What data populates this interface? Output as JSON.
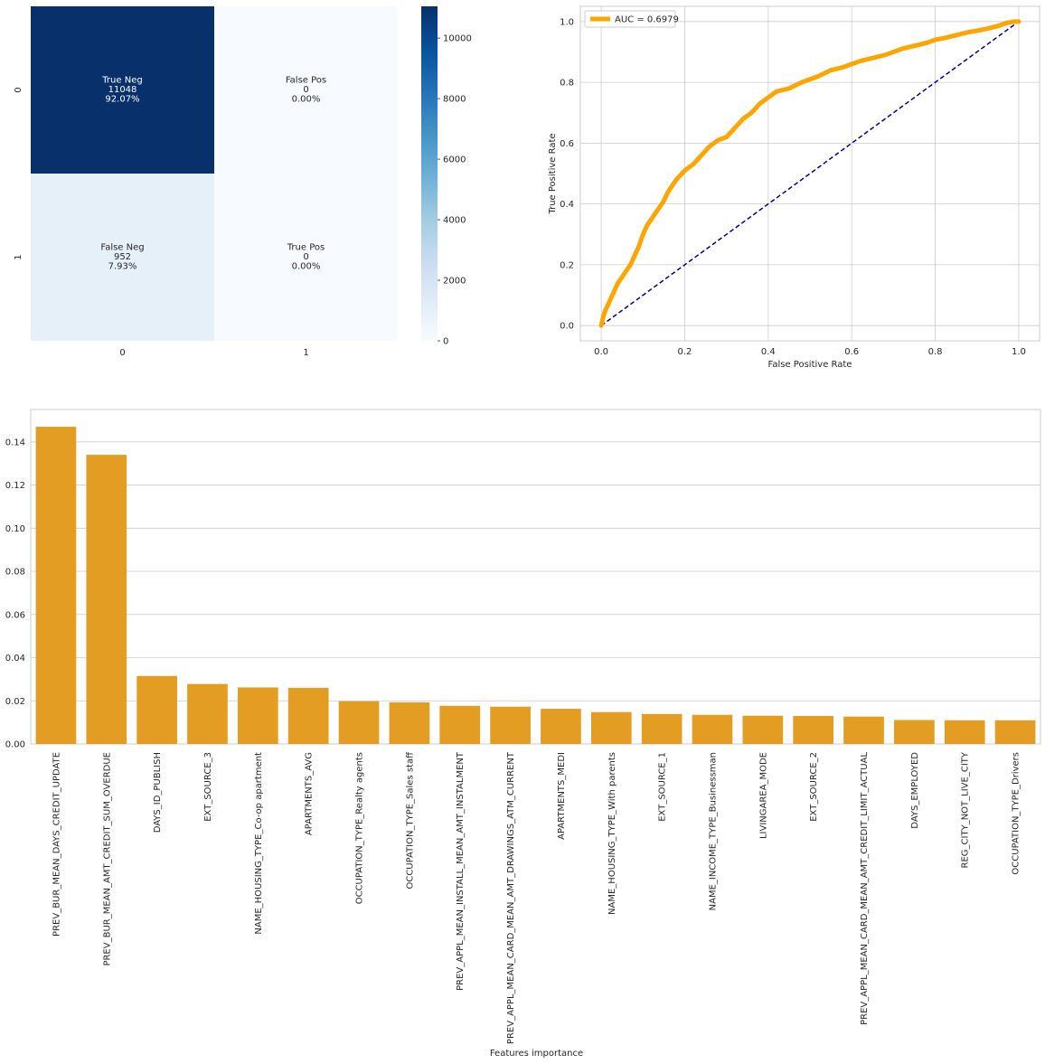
{
  "chart_data": [
    {
      "type": "heatmap",
      "title": "",
      "xlabel": "",
      "ylabel": "",
      "x_ticks": [
        "0",
        "1"
      ],
      "y_ticks": [
        "0",
        "1"
      ],
      "cells": [
        [
          {
            "name": "True Neg",
            "count": "11048",
            "pct": "92.07%",
            "value": 11048
          },
          {
            "name": "False Pos",
            "count": "0",
            "pct": "0.00%",
            "value": 0
          }
        ],
        [
          {
            "name": "False Neg",
            "count": "952",
            "pct": "7.93%",
            "value": 952
          },
          {
            "name": "True Pos",
            "count": "0",
            "pct": "0.00%",
            "value": 0
          }
        ]
      ],
      "colormap": "Blues",
      "colorbar": {
        "range": [
          0,
          11048
        ],
        "ticks": [
          0,
          2000,
          4000,
          6000,
          8000,
          10000
        ]
      }
    },
    {
      "type": "line",
      "title": "",
      "xlabel": "False Positive Rate",
      "ylabel": "True Positive Rate",
      "xlim": [
        -0.05,
        1.05
      ],
      "ylim": [
        -0.05,
        1.05
      ],
      "x_ticks": [
        0.0,
        0.2,
        0.4,
        0.6,
        0.8,
        1.0
      ],
      "y_ticks": [
        0.0,
        0.2,
        0.4,
        0.6,
        0.8,
        1.0
      ],
      "grid": true,
      "legend": {
        "position": "top-left"
      },
      "series": [
        {
          "name": "AUC = 0.6979",
          "color": "#ffa500",
          "style": "solid-thick",
          "points": [
            [
              0.0,
              0.0
            ],
            [
              0.005,
              0.03
            ],
            [
              0.01,
              0.05
            ],
            [
              0.02,
              0.08
            ],
            [
              0.03,
              0.11
            ],
            [
              0.04,
              0.14
            ],
            [
              0.05,
              0.16
            ],
            [
              0.06,
              0.18
            ],
            [
              0.07,
              0.2
            ],
            [
              0.08,
              0.23
            ],
            [
              0.09,
              0.26
            ],
            [
              0.1,
              0.3
            ],
            [
              0.11,
              0.33
            ],
            [
              0.12,
              0.35
            ],
            [
              0.13,
              0.37
            ],
            [
              0.14,
              0.39
            ],
            [
              0.15,
              0.41
            ],
            [
              0.16,
              0.44
            ],
            [
              0.17,
              0.46
            ],
            [
              0.18,
              0.48
            ],
            [
              0.2,
              0.51
            ],
            [
              0.22,
              0.53
            ],
            [
              0.24,
              0.56
            ],
            [
              0.26,
              0.59
            ],
            [
              0.28,
              0.61
            ],
            [
              0.3,
              0.62
            ],
            [
              0.32,
              0.65
            ],
            [
              0.34,
              0.68
            ],
            [
              0.36,
              0.7
            ],
            [
              0.38,
              0.73
            ],
            [
              0.4,
              0.75
            ],
            [
              0.42,
              0.77
            ],
            [
              0.45,
              0.78
            ],
            [
              0.48,
              0.8
            ],
            [
              0.5,
              0.81
            ],
            [
              0.52,
              0.82
            ],
            [
              0.55,
              0.84
            ],
            [
              0.58,
              0.85
            ],
            [
              0.6,
              0.86
            ],
            [
              0.62,
              0.87
            ],
            [
              0.65,
              0.88
            ],
            [
              0.68,
              0.89
            ],
            [
              0.7,
              0.9
            ],
            [
              0.72,
              0.91
            ],
            [
              0.75,
              0.92
            ],
            [
              0.78,
              0.93
            ],
            [
              0.8,
              0.94
            ],
            [
              0.82,
              0.945
            ],
            [
              0.85,
              0.955
            ],
            [
              0.88,
              0.965
            ],
            [
              0.9,
              0.97
            ],
            [
              0.92,
              0.975
            ],
            [
              0.95,
              0.985
            ],
            [
              0.97,
              0.995
            ],
            [
              0.99,
              1.0
            ],
            [
              1.0,
              1.0
            ]
          ]
        },
        {
          "name": "",
          "color": "#00008b",
          "style": "dashed",
          "points": [
            [
              0.0,
              0.0
            ],
            [
              1.0,
              1.0
            ]
          ]
        }
      ]
    },
    {
      "type": "bar",
      "title": "",
      "xlabel": "Features importance",
      "ylabel": "",
      "ylim": [
        0,
        0.155
      ],
      "y_ticks": [
        0.0,
        0.02,
        0.04,
        0.06,
        0.08,
        0.1,
        0.12,
        0.14
      ],
      "y_tick_labels": [
        "0.00",
        "0.02",
        "0.04",
        "0.06",
        "0.08",
        "0.10",
        "0.12",
        "0.14"
      ],
      "grid": true,
      "bar_color": "#e29d22",
      "categories": [
        "PREV_BUR_MEAN_DAYS_CREDIT_UPDATE",
        "PREV_BUR_MEAN_AMT_CREDIT_SUM_OVERDUE",
        "DAYS_ID_PUBLISH",
        "EXT_SOURCE_3",
        "NAME_HOUSING_TYPE_Co-op apartment",
        "APARTMENTS_AVG",
        "OCCUPATION_TYPE_Realty agents",
        "OCCUPATION_TYPE_Sales staff",
        "PREV_APPL_MEAN_INSTALL_MEAN_AMT_INSTALMENT",
        "PREV_APPL_MEAN_CARD_MEAN_AMT_DRAWINGS_ATM_CURRENT",
        "APARTMENTS_MEDI",
        "NAME_HOUSING_TYPE_With parents",
        "EXT_SOURCE_1",
        "NAME_INCOME_TYPE_Businessman",
        "LIVINGAREA_MODE",
        "EXT_SOURCE_2",
        "PREV_APPL_MEAN_CARD_MEAN_AMT_CREDIT_LIMIT_ACTUAL",
        "DAYS_EMPLOYED",
        "REG_CITY_NOT_LIVE_CITY",
        "OCCUPATION_TYPE_Drivers"
      ],
      "values": [
        0.147,
        0.134,
        0.0315,
        0.0278,
        0.0262,
        0.026,
        0.0198,
        0.0193,
        0.0177,
        0.0173,
        0.0163,
        0.0148,
        0.0139,
        0.0135,
        0.0131,
        0.013,
        0.0127,
        0.0111,
        0.011,
        0.011
      ]
    }
  ]
}
